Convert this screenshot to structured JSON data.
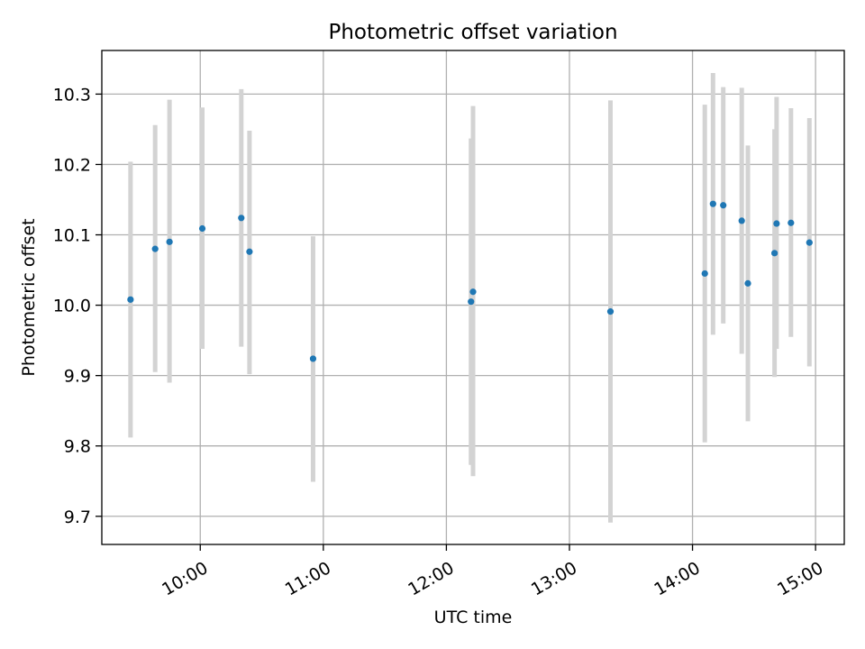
{
  "chart_data": {
    "type": "scatter",
    "title": "Photometric offset variation",
    "xlabel": "UTC time",
    "ylabel": "Photometric offset",
    "x_ticks": [
      "10:00",
      "11:00",
      "12:00",
      "13:00",
      "14:00",
      "15:00"
    ],
    "y_ticks": [
      "9.7",
      "9.8",
      "9.9",
      "10.0",
      "10.1",
      "10.2",
      "10.3"
    ],
    "xlim": [
      "09:12",
      "15:14"
    ],
    "ylim": [
      9.66,
      10.362
    ],
    "grid": true,
    "marker_color": "#1f77b4",
    "errorbar_color": "#d3d3d3",
    "points": [
      {
        "x": "09:26",
        "y": 10.008,
        "low": 9.812,
        "high": 10.204
      },
      {
        "x": "09:38",
        "y": 10.08,
        "low": 9.905,
        "high": 10.256
      },
      {
        "x": "09:45",
        "y": 10.09,
        "low": 9.89,
        "high": 10.292
      },
      {
        "x": "10:01",
        "y": 10.109,
        "low": 9.938,
        "high": 10.281
      },
      {
        "x": "10:20",
        "y": 10.124,
        "low": 9.941,
        "high": 10.307
      },
      {
        "x": "10:24",
        "y": 10.076,
        "low": 9.902,
        "high": 10.248
      },
      {
        "x": "10:55",
        "y": 9.924,
        "low": 9.749,
        "high": 10.098
      },
      {
        "x": "12:12",
        "y": 10.005,
        "low": 9.773,
        "high": 10.237
      },
      {
        "x": "12:13",
        "y": 10.019,
        "low": 9.757,
        "high": 10.283
      },
      {
        "x": "13:20",
        "y": 9.991,
        "low": 9.691,
        "high": 10.291
      },
      {
        "x": "14:06",
        "y": 10.045,
        "low": 9.805,
        "high": 10.285
      },
      {
        "x": "14:10",
        "y": 10.144,
        "low": 9.958,
        "high": 10.33
      },
      {
        "x": "14:15",
        "y": 10.142,
        "low": 9.974,
        "high": 10.31
      },
      {
        "x": "14:24",
        "y": 10.12,
        "low": 9.931,
        "high": 10.309
      },
      {
        "x": "14:27",
        "y": 10.031,
        "low": 9.835,
        "high": 10.227
      },
      {
        "x": "14:40",
        "y": 10.074,
        "low": 9.898,
        "high": 10.25
      },
      {
        "x": "14:41",
        "y": 10.116,
        "low": 9.938,
        "high": 10.296
      },
      {
        "x": "14:48",
        "y": 10.117,
        "low": 9.955,
        "high": 10.28
      },
      {
        "x": "14:57",
        "y": 10.089,
        "low": 9.913,
        "high": 10.266
      }
    ]
  }
}
